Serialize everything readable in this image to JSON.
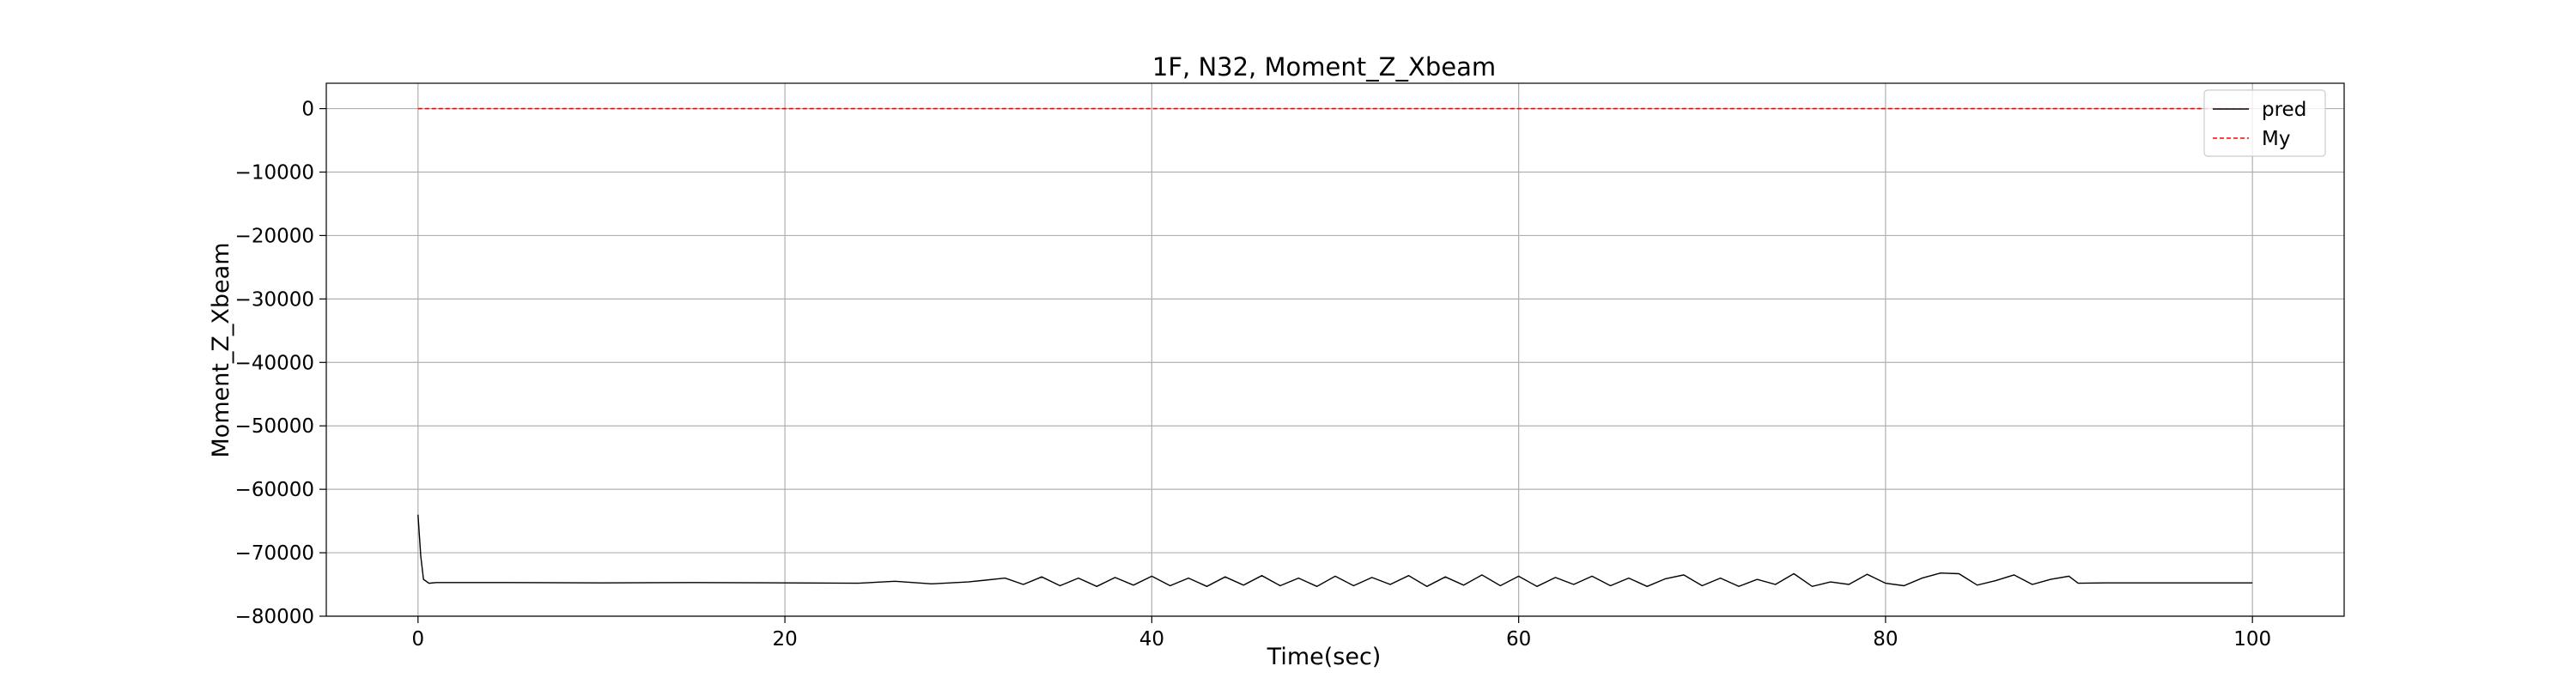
{
  "chart_data": {
    "type": "line",
    "title": "1F, N32, Moment_Z_Xbeam",
    "xlabel": "Time(sec)",
    "ylabel": "Moment_Z_Xbeam",
    "xlim": [
      -5,
      105
    ],
    "ylim": [
      -80000,
      4000
    ],
    "x_ticks": [
      0,
      20,
      40,
      60,
      80,
      100
    ],
    "y_ticks": [
      0,
      -10000,
      -20000,
      -30000,
      -40000,
      -50000,
      -60000,
      -70000,
      -80000
    ],
    "grid": true,
    "legend_position": "top-right",
    "series": [
      {
        "name": "pred",
        "color": "#000000",
        "style": "solid",
        "points": [
          [
            0,
            -64000
          ],
          [
            0.15,
            -70500
          ],
          [
            0.3,
            -74200
          ],
          [
            0.6,
            -74800
          ],
          [
            1.0,
            -74700
          ],
          [
            5,
            -74700
          ],
          [
            10,
            -74750
          ],
          [
            15,
            -74700
          ],
          [
            20,
            -74750
          ],
          [
            24,
            -74800
          ],
          [
            26,
            -74500
          ],
          [
            28,
            -74900
          ],
          [
            30,
            -74600
          ],
          [
            32,
            -74000
          ],
          [
            33,
            -75000
          ],
          [
            34,
            -73800
          ],
          [
            35,
            -75200
          ],
          [
            36,
            -74000
          ],
          [
            37,
            -75300
          ],
          [
            38,
            -73900
          ],
          [
            39,
            -75100
          ],
          [
            40,
            -73700
          ],
          [
            41,
            -75200
          ],
          [
            42,
            -74000
          ],
          [
            43,
            -75300
          ],
          [
            44,
            -73800
          ],
          [
            45,
            -75100
          ],
          [
            46,
            -73600
          ],
          [
            47,
            -75200
          ],
          [
            48,
            -74000
          ],
          [
            49,
            -75300
          ],
          [
            50,
            -73700
          ],
          [
            51,
            -75200
          ],
          [
            52,
            -73900
          ],
          [
            53,
            -75000
          ],
          [
            54,
            -73600
          ],
          [
            55,
            -75300
          ],
          [
            56,
            -73800
          ],
          [
            57,
            -75100
          ],
          [
            58,
            -73500
          ],
          [
            59,
            -75200
          ],
          [
            60,
            -73700
          ],
          [
            61,
            -75300
          ],
          [
            62,
            -73900
          ],
          [
            63,
            -75000
          ],
          [
            64,
            -73700
          ],
          [
            65,
            -75200
          ],
          [
            66,
            -74000
          ],
          [
            67,
            -75300
          ],
          [
            68,
            -74100
          ],
          [
            69,
            -73500
          ],
          [
            70,
            -75200
          ],
          [
            71,
            -74000
          ],
          [
            72,
            -75300
          ],
          [
            73,
            -74200
          ],
          [
            74,
            -75000
          ],
          [
            75,
            -73300
          ],
          [
            76,
            -75300
          ],
          [
            77,
            -74600
          ],
          [
            78,
            -75000
          ],
          [
            79,
            -73400
          ],
          [
            80,
            -74800
          ],
          [
            81,
            -75200
          ],
          [
            82,
            -74000
          ],
          [
            83,
            -73200
          ],
          [
            84,
            -73300
          ],
          [
            85,
            -75100
          ],
          [
            86,
            -74400
          ],
          [
            87,
            -73500
          ],
          [
            88,
            -75000
          ],
          [
            89,
            -74200
          ],
          [
            90,
            -73700
          ],
          [
            90.5,
            -74800
          ],
          [
            92,
            -74750
          ],
          [
            95,
            -74750
          ],
          [
            100,
            -74750
          ]
        ]
      },
      {
        "name": "My",
        "color": "#ff0000",
        "style": "dashed",
        "points": [
          [
            0,
            0
          ],
          [
            100,
            0
          ]
        ]
      }
    ]
  }
}
